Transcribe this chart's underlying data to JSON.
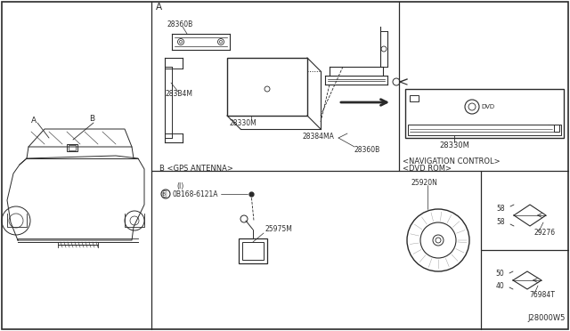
{
  "bg_color": "#ffffff",
  "line_color": "#2a2a2a",
  "border_color": "#2a2a2a",
  "fig_width": 6.4,
  "fig_height": 3.72,
  "diagram_id": "J28000W5",
  "nav_control_label": "<NAVIGATION CONTROL>",
  "nav_unit_label": "28330M",
  "gps_section_label": "B <GPS ANTENNA>",
  "dvd_rom_label": "<DVD ROM>",
  "part_28384MA": "28384MA",
  "part_28360B_top": "28360B",
  "part_2833B4M": "283B4M",
  "part_28330M_main": "28330M",
  "part_28360B_bottom": "28360B",
  "part_0B168": "0B168-6121A",
  "part_0B168_sub": "(I)",
  "part_25975M": "25975M",
  "part_25920N": "25920N",
  "part_29276": "29276",
  "part_76984T": "76984T",
  "dim_58a": "58",
  "dim_58b": "58",
  "dim_40": "40",
  "dim_50": "50",
  "section_A": "A",
  "section_B": "B"
}
